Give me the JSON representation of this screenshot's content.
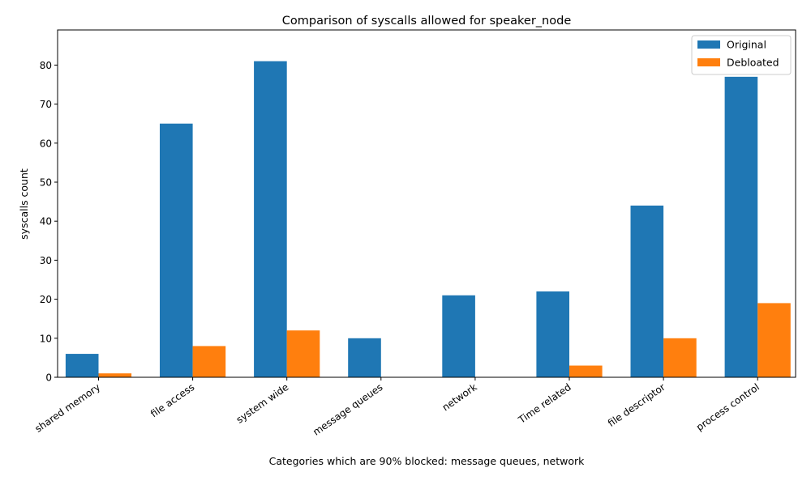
{
  "chart_data": {
    "type": "bar",
    "title": "Comparison of syscalls allowed for speaker_node",
    "xlabel": "Categories which are 90% blocked: message queues, network",
    "ylabel": "syscalls count",
    "categories": [
      "shared memory",
      "file access",
      "system wide",
      "message queues",
      "network",
      "Time related",
      "file descriptor",
      "process control"
    ],
    "series": [
      {
        "name": "Original",
        "color": "#1f77b4",
        "values": [
          6,
          65,
          81,
          10,
          21,
          22,
          44,
          77
        ]
      },
      {
        "name": "Debloated",
        "color": "#ff7f0e",
        "values": [
          1,
          8,
          12,
          0,
          0,
          3,
          10,
          19
        ]
      }
    ],
    "ylim": [
      0,
      89
    ],
    "yticks": [
      0,
      10,
      20,
      30,
      40,
      50,
      60,
      70,
      80
    ],
    "grid": false,
    "legend_position": "top-right"
  }
}
